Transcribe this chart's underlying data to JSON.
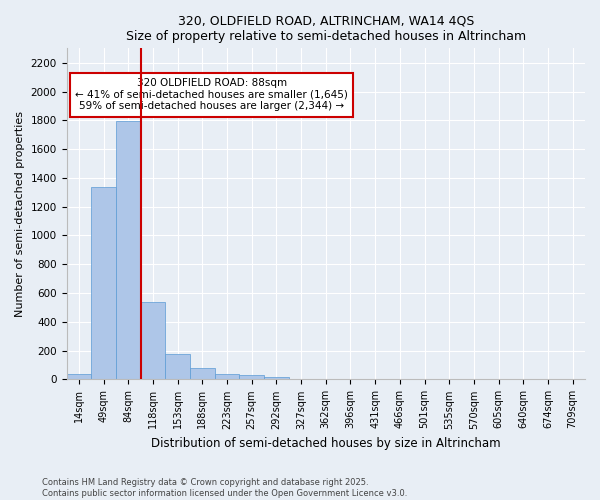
{
  "title1": "320, OLDFIELD ROAD, ALTRINCHAM, WA14 4QS",
  "title2": "Size of property relative to semi-detached houses in Altrincham",
  "xlabel": "Distribution of semi-detached houses by size in Altrincham",
  "ylabel": "Number of semi-detached properties",
  "bar_color": "#aec6e8",
  "bar_edge_color": "#5b9bd5",
  "background_color": "#e8eef5",
  "fig_background_color": "#e8eef5",
  "grid_color": "#ffffff",
  "bins": [
    "14sqm",
    "49sqm",
    "84sqm",
    "118sqm",
    "153sqm",
    "188sqm",
    "223sqm",
    "257sqm",
    "292sqm",
    "327sqm",
    "362sqm",
    "396sqm",
    "431sqm",
    "466sqm",
    "501sqm",
    "535sqm",
    "570sqm",
    "605sqm",
    "640sqm",
    "674sqm",
    "709sqm"
  ],
  "values": [
    35,
    1340,
    1795,
    535,
    175,
    80,
    35,
    30,
    20,
    0,
    0,
    0,
    0,
    0,
    0,
    0,
    0,
    0,
    0,
    0,
    0
  ],
  "ylim": [
    0,
    2300
  ],
  "yticks": [
    0,
    200,
    400,
    600,
    800,
    1000,
    1200,
    1400,
    1600,
    1800,
    2000,
    2200
  ],
  "vline_x": 2.5,
  "annotation_title": "320 OLDFIELD ROAD: 88sqm",
  "annotation_line1": "← 41% of semi-detached houses are smaller (1,645)",
  "annotation_line2": "59% of semi-detached houses are larger (2,344) →",
  "annotation_box_color": "#ffffff",
  "annotation_edge_color": "#cc0000",
  "vline_color": "#cc0000",
  "footer1": "Contains HM Land Registry data © Crown copyright and database right 2025.",
  "footer2": "Contains public sector information licensed under the Open Government Licence v3.0."
}
